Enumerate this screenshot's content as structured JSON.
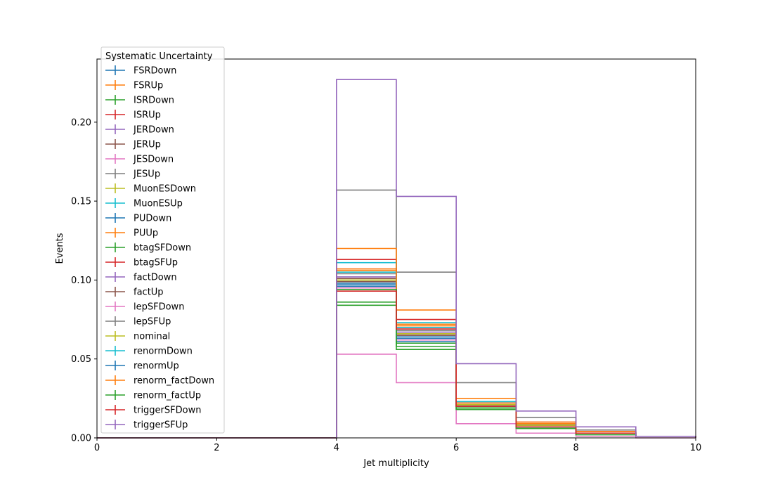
{
  "chart_data": {
    "type": "step-histogram",
    "xlabel": "Jet multiplicity",
    "ylabel": "Events",
    "xlim": [
      0,
      10
    ],
    "ylim": [
      0,
      0.24
    ],
    "xticks": [
      0,
      2,
      4,
      6,
      8,
      10
    ],
    "xtick_labels": [
      "0",
      "2",
      "4",
      "6",
      "8",
      "10"
    ],
    "yticks": [
      0,
      0.05,
      0.1,
      0.15,
      0.2
    ],
    "ytick_labels": [
      "0.00",
      "0.05",
      "0.10",
      "0.15",
      "0.20"
    ],
    "grid": false,
    "bin_edges": [
      0,
      1,
      2,
      3,
      4,
      5,
      6,
      7,
      8,
      9,
      10
    ],
    "legend": {
      "title": "Systematic Uncertainty",
      "placement": "upper-left"
    },
    "series": [
      {
        "name": "FSRDown",
        "color": "#1f77b4",
        "values": [
          0,
          0,
          0,
          0,
          0.098,
          0.061,
          0.02,
          0.007,
          0.003,
          0.001
        ]
      },
      {
        "name": "FSRUp",
        "color": "#ff7f0e",
        "values": [
          0,
          0,
          0,
          0,
          0.106,
          0.072,
          0.022,
          0.009,
          0.003,
          0.001
        ]
      },
      {
        "name": "ISRDown",
        "color": "#2ca02c",
        "values": [
          0,
          0,
          0,
          0,
          0.084,
          0.058,
          0.018,
          0.006,
          0.002,
          0.001
        ]
      },
      {
        "name": "ISRUp",
        "color": "#d62728",
        "values": [
          0,
          0,
          0,
          0,
          0.113,
          0.075,
          0.023,
          0.01,
          0.004,
          0.001
        ]
      },
      {
        "name": "JERDown",
        "color": "#9467bd",
        "values": [
          0,
          0,
          0,
          0,
          0.1,
          0.065,
          0.021,
          0.008,
          0.003,
          0.001
        ]
      },
      {
        "name": "JERUp",
        "color": "#8c564b",
        "values": [
          0,
          0,
          0,
          0,
          0.101,
          0.066,
          0.021,
          0.008,
          0.003,
          0.001
        ]
      },
      {
        "name": "JESDown",
        "color": "#e377c2",
        "values": [
          0,
          0,
          0,
          0,
          0.053,
          0.035,
          0.009,
          0.003,
          0.001,
          0.0
        ]
      },
      {
        "name": "JESUp",
        "color": "#7f7f7f",
        "values": [
          0,
          0,
          0,
          0,
          0.157,
          0.105,
          0.035,
          0.013,
          0.005,
          0.001
        ]
      },
      {
        "name": "MuonESDown",
        "color": "#bcbd22",
        "values": [
          0,
          0,
          0,
          0,
          0.1,
          0.066,
          0.021,
          0.008,
          0.003,
          0.001
        ]
      },
      {
        "name": "MuonESUp",
        "color": "#17becf",
        "values": [
          0,
          0,
          0,
          0,
          0.111,
          0.073,
          0.023,
          0.009,
          0.003,
          0.001
        ]
      },
      {
        "name": "PUDown",
        "color": "#1f77b4",
        "values": [
          0,
          0,
          0,
          0,
          0.097,
          0.064,
          0.02,
          0.008,
          0.003,
          0.001
        ]
      },
      {
        "name": "PUUp",
        "color": "#ff7f0e",
        "values": [
          0,
          0,
          0,
          0,
          0.12,
          0.081,
          0.025,
          0.01,
          0.004,
          0.001
        ]
      },
      {
        "name": "btagSFDown",
        "color": "#2ca02c",
        "values": [
          0,
          0,
          0,
          0,
          0.086,
          0.056,
          0.018,
          0.006,
          0.002,
          0.001
        ]
      },
      {
        "name": "btagSFUp",
        "color": "#d62728",
        "values": [
          0,
          0,
          0,
          0,
          0.107,
          0.07,
          0.022,
          0.009,
          0.003,
          0.001
        ]
      },
      {
        "name": "factDown",
        "color": "#9467bd",
        "values": [
          0,
          0,
          0,
          0,
          0.102,
          0.067,
          0.021,
          0.008,
          0.003,
          0.001
        ]
      },
      {
        "name": "factUp",
        "color": "#8c564b",
        "values": [
          0,
          0,
          0,
          0,
          0.099,
          0.065,
          0.02,
          0.008,
          0.003,
          0.001
        ]
      },
      {
        "name": "lepSFDown",
        "color": "#e377c2",
        "values": [
          0,
          0,
          0,
          0,
          0.095,
          0.062,
          0.02,
          0.007,
          0.003,
          0.001
        ]
      },
      {
        "name": "lepSFUp",
        "color": "#7f7f7f",
        "values": [
          0,
          0,
          0,
          0,
          0.104,
          0.068,
          0.021,
          0.008,
          0.003,
          0.001
        ]
      },
      {
        "name": "nominal",
        "color": "#bcbd22",
        "values": [
          0,
          0,
          0,
          0,
          0.1,
          0.066,
          0.021,
          0.008,
          0.003,
          0.001
        ]
      },
      {
        "name": "renormDown",
        "color": "#17becf",
        "values": [
          0,
          0,
          0,
          0,
          0.105,
          0.07,
          0.022,
          0.009,
          0.003,
          0.001
        ]
      },
      {
        "name": "renormUp",
        "color": "#1f77b4",
        "values": [
          0,
          0,
          0,
          0,
          0.096,
          0.063,
          0.02,
          0.007,
          0.003,
          0.001
        ]
      },
      {
        "name": "renorm_factDown",
        "color": "#ff7f0e",
        "values": [
          0,
          0,
          0,
          0,
          0.107,
          0.071,
          0.022,
          0.009,
          0.003,
          0.001
        ]
      },
      {
        "name": "renorm_factUp",
        "color": "#2ca02c",
        "values": [
          0,
          0,
          0,
          0,
          0.094,
          0.06,
          0.019,
          0.007,
          0.003,
          0.001
        ]
      },
      {
        "name": "triggerSFDown",
        "color": "#d62728",
        "values": [
          0,
          0,
          0,
          0,
          0.093,
          0.069,
          0.02,
          0.007,
          0.003,
          0.001
        ]
      },
      {
        "name": "triggerSFUp",
        "color": "#9467bd",
        "values": [
          0,
          0,
          0,
          0,
          0.227,
          0.153,
          0.047,
          0.017,
          0.007,
          0.001
        ]
      }
    ]
  }
}
